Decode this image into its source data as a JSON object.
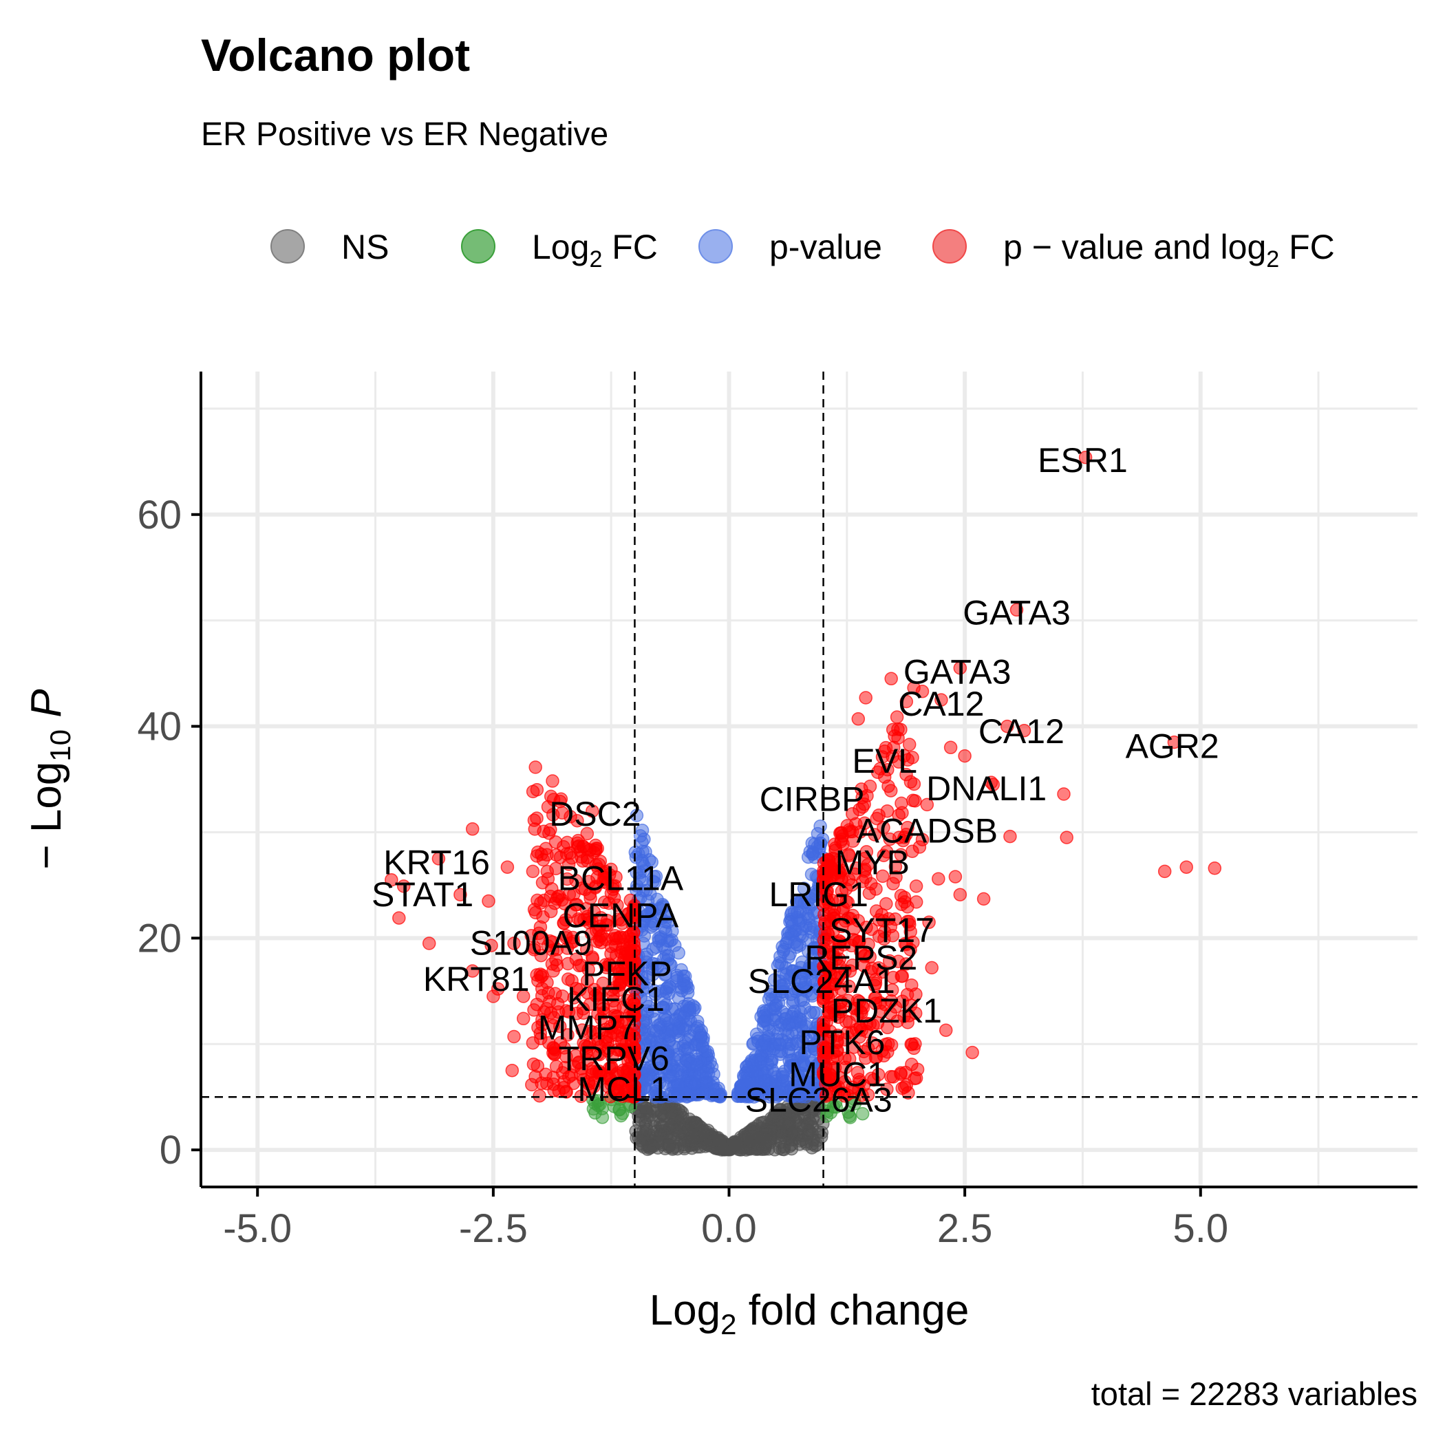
{
  "title": "Volcano plot",
  "subtitle": "ER Positive vs ER Negative",
  "caption": "total = 22283 variables",
  "legend": {
    "position": "top",
    "items": [
      {
        "key": "ns",
        "base": "NS",
        "sub": "",
        "tail": "",
        "color": "#808080"
      },
      {
        "key": "fc",
        "base": "Log",
        "sub": "2",
        "tail": " FC",
        "color": "#3aa03a"
      },
      {
        "key": "p",
        "base": "p-value",
        "sub": "",
        "tail": "",
        "color": "#6e8fe8"
      },
      {
        "key": "pfc",
        "base": "p − value and log",
        "sub": "2",
        "tail": " FC",
        "color": "#f04848"
      }
    ]
  },
  "colors": {
    "ns": "#505050",
    "fc": "#3aa03a",
    "p": "#4169e1",
    "pfc": "#ff0000",
    "grid": "#ebebeb",
    "axis": "#000000",
    "tick_text": "#4d4d4d",
    "cutoff": "#000000"
  },
  "chart_data": {
    "type": "scatter",
    "title": "Volcano plot",
    "subtitle": "ER Positive vs ER Negative",
    "xlabel": {
      "base": "Log",
      "sub": "2",
      "tail": " fold change"
    },
    "ylabel": {
      "prefix": "− Log",
      "sub": "10",
      "italic": "P"
    },
    "xlim": [
      -5.6,
      7.3
    ],
    "ylim": [
      -3.5,
      73.5
    ],
    "x_ticks": [
      -5.0,
      -2.5,
      0.0,
      2.5,
      5.0
    ],
    "x_tick_labels": [
      "-5.0",
      "-2.5",
      "0.0",
      "2.5",
      "5.0"
    ],
    "y_ticks": [
      0,
      20,
      40,
      60
    ],
    "y_tick_labels": [
      "0",
      "20",
      "40",
      "60"
    ],
    "grid": true,
    "cutoffs": {
      "fc": [
        -1,
        1
      ],
      "neglog10p": 5
    },
    "labeled_genes": [
      {
        "gene": "ESR1",
        "x": 3.78,
        "y": 65.4,
        "lx": 3.75,
        "ly": 65.0
      },
      {
        "gene": "GATA3",
        "x": 3.05,
        "y": 51.0,
        "lx": 3.05,
        "ly": 50.6
      },
      {
        "gene": "GATA3",
        "x": 2.45,
        "y": 45.5,
        "lx": 2.42,
        "ly": 45.0
      },
      {
        "gene": "CA12",
        "x": 2.25,
        "y": 42.5,
        "lx": 2.25,
        "ly": 42.0
      },
      {
        "gene": "CA12",
        "x": 2.95,
        "y": 40.0,
        "lx": 3.1,
        "ly": 39.4
      },
      {
        "gene": "AGR2",
        "x": 4.72,
        "y": 38.5,
        "lx": 4.7,
        "ly": 38.0
      },
      {
        "gene": "EVL",
        "x": 1.68,
        "y": 37.0,
        "lx": 1.65,
        "ly": 36.6
      },
      {
        "gene": "DNALI1",
        "x": 2.8,
        "y": 34.5,
        "lx": 2.73,
        "ly": 34.0
      },
      {
        "gene": "CIRBP",
        "x": 1.35,
        "y": 33.5,
        "lx": 0.88,
        "ly": 33.0
      },
      {
        "gene": "DSC2",
        "x": -1.45,
        "y": 32.0,
        "lx": -1.42,
        "ly": 31.6
      },
      {
        "gene": "ACADSB",
        "x": 2.5,
        "y": 30.5,
        "lx": 2.1,
        "ly": 30.0
      },
      {
        "gene": "MYB",
        "x": 1.95,
        "y": 27.5,
        "lx": 1.52,
        "ly": 27.0
      },
      {
        "gene": "KRT16",
        "x": -3.1,
        "y": 27.5,
        "lx": -3.1,
        "ly": 27.0
      },
      {
        "gene": "BCL11A",
        "x": -0.9,
        "y": 25.8,
        "lx": -1.15,
        "ly": 25.5
      },
      {
        "gene": "STAT1",
        "x": -2.55,
        "y": 24.0,
        "lx": -3.25,
        "ly": 24.0
      },
      {
        "gene": "LRIG1",
        "x": 1.3,
        "y": 24.5,
        "lx": 0.95,
        "ly": 24.0
      },
      {
        "gene": "CENPA",
        "x": -1.2,
        "y": 22.5,
        "lx": -1.15,
        "ly": 22.0
      },
      {
        "gene": "SYT17",
        "x": 1.7,
        "y": 21.0,
        "lx": 1.62,
        "ly": 20.6
      },
      {
        "gene": "S100A9",
        "x": -1.9,
        "y": 19.8,
        "lx": -2.1,
        "ly": 19.4
      },
      {
        "gene": "REPS2",
        "x": 1.45,
        "y": 18.5,
        "lx": 1.4,
        "ly": 18.0
      },
      {
        "gene": "PFKP",
        "x": -1.1,
        "y": 17.0,
        "lx": -1.08,
        "ly": 16.5
      },
      {
        "gene": "KRT81",
        "x": -2.8,
        "y": 16.5,
        "lx": -2.68,
        "ly": 16.0
      },
      {
        "gene": "SLC24A1",
        "x": 1.5,
        "y": 16.2,
        "lx": 0.98,
        "ly": 15.8
      },
      {
        "gene": "KIFC1",
        "x": -1.3,
        "y": 14.5,
        "lx": -1.2,
        "ly": 14.1
      },
      {
        "gene": "PDZK1",
        "x": 1.8,
        "y": 13.5,
        "lx": 1.67,
        "ly": 13.0
      },
      {
        "gene": "MMP7",
        "x": -1.5,
        "y": 11.8,
        "lx": -1.5,
        "ly": 11.4
      },
      {
        "gene": "PTK6",
        "x": 1.25,
        "y": 10.5,
        "lx": 1.2,
        "ly": 10.0
      },
      {
        "gene": "TRPV6",
        "x": -1.35,
        "y": 8.9,
        "lx": -1.22,
        "ly": 8.5
      },
      {
        "gene": "MUC1",
        "x": 1.25,
        "y": 7.4,
        "lx": 1.15,
        "ly": 7.0
      },
      {
        "gene": "MCL1",
        "x": -1.15,
        "y": 6.0,
        "lx": -1.12,
        "ly": 5.6
      },
      {
        "gene": "SLC26A3",
        "x": 1.0,
        "y": 5.0,
        "lx": 0.95,
        "ly": 4.6
      }
    ],
    "outlier_points": [
      {
        "x": 3.78,
        "y": 65.4
      },
      {
        "x": 3.05,
        "y": 51.0
      },
      {
        "x": 2.45,
        "y": 45.5
      },
      {
        "x": 2.25,
        "y": 42.5
      },
      {
        "x": 2.95,
        "y": 40.0
      },
      {
        "x": 4.72,
        "y": 38.5
      },
      {
        "x": 2.8,
        "y": 34.5
      },
      {
        "x": 4.62,
        "y": 26.3
      },
      {
        "x": 4.85,
        "y": 26.7
      },
      {
        "x": 5.15,
        "y": 26.6
      },
      {
        "x": 3.55,
        "y": 33.6
      },
      {
        "x": 3.58,
        "y": 29.5
      },
      {
        "x": 2.98,
        "y": 29.6
      },
      {
        "x": 2.7,
        "y": 23.7
      },
      {
        "x": 2.58,
        "y": 9.2
      },
      {
        "x": 2.3,
        "y": 11.3
      },
      {
        "x": 1.45,
        "y": 42.7
      },
      {
        "x": 1.37,
        "y": 40.7
      },
      {
        "x": 1.72,
        "y": 44.5
      },
      {
        "x": 1.82,
        "y": 39.7
      },
      {
        "x": 2.05,
        "y": 43.3
      },
      {
        "x": 2.35,
        "y": 38.0
      },
      {
        "x": 2.5,
        "y": 37.2
      },
      {
        "x": 3.13,
        "y": 39.6
      },
      {
        "x": 2.78,
        "y": 34.7
      },
      {
        "x": 2.1,
        "y": 32.6
      },
      {
        "x": 1.95,
        "y": 33.0
      },
      {
        "x": 1.68,
        "y": 35.9
      },
      {
        "x": 1.8,
        "y": 31.6
      },
      {
        "x": 2.05,
        "y": 29.3
      },
      {
        "x": 2.4,
        "y": 25.8
      },
      {
        "x": 2.45,
        "y": 24.1
      },
      {
        "x": 2.22,
        "y": 25.6
      },
      {
        "x": 2.02,
        "y": 28.6
      },
      {
        "x": 2.12,
        "y": 21.5
      },
      {
        "x": 1.95,
        "y": 19.6
      },
      {
        "x": 2.15,
        "y": 17.2
      },
      {
        "x": 1.98,
        "y": 14.7
      },
      {
        "x": 2.0,
        "y": 7.6
      },
      {
        "x": 1.96,
        "y": 9.6
      },
      {
        "x": -1.45,
        "y": 32.0
      },
      {
        "x": -2.72,
        "y": 30.3
      },
      {
        "x": -2.35,
        "y": 26.7
      },
      {
        "x": -3.58,
        "y": 25.5
      },
      {
        "x": -3.45,
        "y": 24.9
      },
      {
        "x": -2.55,
        "y": 23.5
      },
      {
        "x": -2.85,
        "y": 24.1
      },
      {
        "x": -3.08,
        "y": 27.5
      },
      {
        "x": -3.5,
        "y": 21.9
      },
      {
        "x": -3.18,
        "y": 19.5
      },
      {
        "x": -2.28,
        "y": 19.5
      },
      {
        "x": -2.52,
        "y": 19.3
      },
      {
        "x": -2.72,
        "y": 16.9
      },
      {
        "x": -2.45,
        "y": 15.2
      },
      {
        "x": -2.5,
        "y": 14.5
      },
      {
        "x": -2.18,
        "y": 14.5
      },
      {
        "x": -2.05,
        "y": 22.4
      },
      {
        "x": -1.97,
        "y": 27.4
      },
      {
        "x": -1.92,
        "y": 25.6
      },
      {
        "x": -2.18,
        "y": 12.4
      },
      {
        "x": -2.08,
        "y": 10.1
      },
      {
        "x": -2.28,
        "y": 10.7
      },
      {
        "x": -2.3,
        "y": 7.5
      },
      {
        "x": -1.85,
        "y": 9.1
      },
      {
        "x": -1.42,
        "y": 3.5
      }
    ],
    "series": [
      {
        "name": "NS",
        "x_range": [
          -1.0,
          1.0
        ],
        "y_range": [
          0,
          5
        ]
      },
      {
        "name": "Log2 FC",
        "x_range": [
          -1.45,
          1.45
        ],
        "y_range": [
          3,
          5
        ]
      },
      {
        "name": "p-value",
        "x_range": [
          -1.0,
          1.0
        ],
        "y_range": [
          5,
          32
        ]
      },
      {
        "name": "p - value and log2 FC",
        "x_range": [
          -3.6,
          5.2
        ],
        "y_range": [
          5,
          65.4
        ]
      }
    ]
  }
}
